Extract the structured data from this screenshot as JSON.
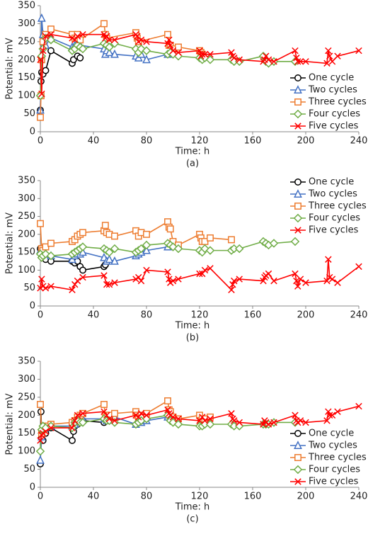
{
  "chart_data": [
    {
      "type": "line",
      "caption": "(a)",
      "xlabel": "Time: h",
      "ylabel": "Potential: mV",
      "xlim": [
        0,
        240
      ],
      "xticks": [
        0,
        40,
        80,
        120,
        160,
        200,
        240
      ],
      "ylim": [
        0,
        350
      ],
      "yticks": [
        0,
        50,
        100,
        150,
        200,
        250,
        300,
        350
      ],
      "legend": "lower right",
      "series": [
        {
          "name": "One cycle",
          "color": "#000000",
          "marker": "circle",
          "x": [
            0,
            0.5,
            1,
            2,
            4,
            8,
            24,
            25,
            28,
            30
          ],
          "values": [
            60,
            140,
            165,
            160,
            170,
            225,
            190,
            200,
            210,
            205
          ]
        },
        {
          "name": "Two cycles",
          "color": "#4472c4",
          "marker": "triangle",
          "x": [
            0,
            1,
            2,
            4,
            8,
            24,
            26,
            28,
            30,
            48,
            49,
            50,
            52,
            56,
            72,
            74,
            76,
            80,
            96,
            98
          ],
          "values": [
            60,
            315,
            270,
            240,
            260,
            235,
            240,
            245,
            240,
            230,
            215,
            225,
            220,
            215,
            210,
            205,
            215,
            200,
            215,
            220
          ]
        },
        {
          "name": "Three cycles",
          "color": "#ed7d31",
          "marker": "square",
          "x": [
            0,
            0.5,
            1,
            2,
            4,
            8,
            24,
            26,
            28,
            30,
            48,
            49,
            50,
            72,
            73,
            74,
            96,
            97,
            98,
            100,
            104,
            120,
            121,
            122
          ],
          "values": [
            40,
            100,
            200,
            250,
            270,
            285,
            270,
            260,
            270,
            255,
            300,
            270,
            260,
            275,
            260,
            250,
            270,
            240,
            240,
            230,
            235,
            225,
            220,
            215
          ]
        },
        {
          "name": "Four cycles",
          "color": "#70ad47",
          "marker": "diamond",
          "x": [
            0,
            1,
            2,
            4,
            8,
            24,
            26,
            28,
            30,
            32,
            48,
            50,
            52,
            56,
            72,
            74,
            76,
            80,
            96,
            98,
            100,
            104,
            120,
            122,
            124,
            128,
            144,
            146,
            150,
            168,
            170,
            172,
            176,
            192
          ],
          "values": [
            100,
            210,
            230,
            260,
            255,
            225,
            230,
            240,
            235,
            230,
            245,
            240,
            235,
            245,
            230,
            220,
            230,
            225,
            215,
            220,
            215,
            210,
            205,
            200,
            205,
            200,
            200,
            195,
            195,
            210,
            195,
            190,
            195,
            195
          ]
        },
        {
          "name": "Five cycles",
          "color": "#ff0000",
          "marker": "x",
          "x": [
            0,
            1,
            2,
            4,
            8,
            24,
            26,
            28,
            32,
            48,
            49,
            50,
            52,
            56,
            72,
            73,
            74,
            76,
            80,
            96,
            97,
            98,
            100,
            104,
            120,
            121,
            122,
            124,
            128,
            144,
            145,
            146,
            150,
            168,
            169,
            170,
            172,
            176,
            192,
            193,
            194,
            196,
            200,
            216,
            217,
            218,
            220,
            224,
            240
          ],
          "values": [
            200,
            105,
            225,
            265,
            270,
            260,
            255,
            265,
            270,
            270,
            260,
            265,
            255,
            255,
            270,
            265,
            250,
            255,
            250,
            245,
            255,
            240,
            225,
            220,
            225,
            210,
            215,
            215,
            215,
            220,
            210,
            205,
            200,
            195,
            200,
            210,
            200,
            195,
            225,
            205,
            195,
            195,
            195,
            190,
            225,
            210,
            195,
            210,
            225
          ]
        }
      ]
    },
    {
      "type": "line",
      "caption": "(b)",
      "xlabel": "Time: h",
      "ylabel": "Potential: mV",
      "xlim": [
        0,
        240
      ],
      "xticks": [
        0,
        40,
        80,
        120,
        160,
        200,
        240
      ],
      "ylim": [
        0,
        350
      ],
      "yticks": [
        0,
        50,
        100,
        150,
        200,
        250,
        300,
        350
      ],
      "legend": "upper right",
      "series": [
        {
          "name": "One cycle",
          "color": "#000000",
          "marker": "circle",
          "x": [
            0,
            1,
            2,
            4,
            8,
            24,
            26,
            28,
            30,
            32,
            48,
            49
          ],
          "values": [
            160,
            140,
            145,
            130,
            125,
            125,
            120,
            125,
            110,
            100,
            110,
            115
          ]
        },
        {
          "name": "Two cycles",
          "color": "#4472c4",
          "marker": "triangle",
          "x": [
            0,
            1,
            2,
            4,
            8,
            24,
            26,
            28,
            30,
            32,
            48,
            50,
            52,
            56,
            72,
            74,
            76,
            80,
            96
          ],
          "values": [
            155,
            150,
            160,
            145,
            140,
            130,
            140,
            145,
            145,
            150,
            135,
            125,
            130,
            125,
            140,
            145,
            150,
            155,
            165
          ]
        },
        {
          "name": "Three cycles",
          "color": "#ed7d31",
          "marker": "square",
          "x": [
            0,
            1,
            2,
            4,
            8,
            24,
            26,
            28,
            30,
            32,
            48,
            49,
            50,
            52,
            56,
            72,
            74,
            76,
            80,
            96,
            97,
            98,
            100,
            104,
            120,
            121,
            122,
            124,
            128,
            144
          ],
          "values": [
            230,
            160,
            155,
            165,
            175,
            180,
            185,
            195,
            200,
            205,
            210,
            225,
            205,
            200,
            195,
            210,
            195,
            205,
            200,
            235,
            220,
            215,
            180,
            170,
            200,
            190,
            180,
            180,
            190,
            185
          ]
        },
        {
          "name": "Four cycles",
          "color": "#70ad47",
          "marker": "diamond",
          "x": [
            0,
            1,
            2,
            4,
            8,
            24,
            26,
            28,
            30,
            32,
            48,
            50,
            52,
            56,
            72,
            74,
            76,
            80,
            96,
            98,
            100,
            104,
            120,
            122,
            124,
            128,
            144,
            146,
            150,
            168,
            170,
            172,
            176,
            192
          ],
          "values": [
            145,
            135,
            140,
            145,
            140,
            145,
            150,
            155,
            160,
            165,
            160,
            155,
            150,
            160,
            150,
            155,
            160,
            170,
            175,
            170,
            165,
            160,
            155,
            150,
            160,
            155,
            155,
            160,
            160,
            180,
            175,
            170,
            175,
            180
          ]
        },
        {
          "name": "Five cycles",
          "color": "#ff0000",
          "marker": "x",
          "x": [
            0,
            1,
            2,
            4,
            8,
            24,
            26,
            28,
            32,
            48,
            50,
            52,
            56,
            72,
            74,
            76,
            80,
            96,
            97,
            98,
            100,
            104,
            120,
            122,
            124,
            128,
            144,
            145,
            146,
            150,
            168,
            169,
            170,
            172,
            176,
            192,
            193,
            194,
            196,
            200,
            216,
            217,
            218,
            220,
            224,
            240
          ],
          "values": [
            50,
            75,
            55,
            50,
            55,
            45,
            60,
            70,
            80,
            85,
            60,
            60,
            65,
            75,
            80,
            70,
            100,
            95,
            75,
            65,
            70,
            75,
            90,
            90,
            100,
            105,
            45,
            60,
            70,
            75,
            70,
            80,
            85,
            90,
            70,
            90,
            70,
            55,
            75,
            65,
            70,
            130,
            80,
            75,
            65,
            110
          ]
        }
      ]
    },
    {
      "type": "line",
      "caption": "(c)",
      "xlabel": "Time: h",
      "ylabel": "Potential: mV",
      "xlim": [
        0,
        240
      ],
      "xticks": [
        0,
        40,
        80,
        120,
        160,
        200,
        240
      ],
      "ylim": [
        0,
        350
      ],
      "yticks": [
        0,
        50,
        100,
        150,
        200,
        250,
        300,
        350
      ],
      "legend": "lower right",
      "series": [
        {
          "name": "One cycle",
          "color": "#000000",
          "marker": "circle",
          "x": [
            0,
            0.5,
            1,
            2,
            4,
            8,
            24,
            25,
            26,
            28,
            30,
            32,
            48
          ],
          "values": [
            65,
            210,
            140,
            130,
            150,
            165,
            130,
            155,
            170,
            175,
            180,
            185,
            180
          ]
        },
        {
          "name": "Two cycles",
          "color": "#4472c4",
          "marker": "triangle",
          "x": [
            0,
            1,
            2,
            4,
            8,
            24,
            26,
            28,
            30,
            32,
            48,
            50,
            52,
            56,
            72,
            74,
            76,
            80,
            96
          ],
          "values": [
            75,
            140,
            160,
            165,
            170,
            170,
            175,
            185,
            190,
            190,
            190,
            185,
            195,
            195,
            175,
            185,
            180,
            185,
            195
          ]
        },
        {
          "name": "Three cycles",
          "color": "#ed7d31",
          "marker": "square",
          "x": [
            0,
            1,
            2,
            4,
            8,
            24,
            26,
            28,
            30,
            32,
            48,
            49,
            50,
            52,
            56,
            72,
            73,
            74,
            76,
            80,
            96,
            97,
            98,
            100,
            104,
            120,
            121,
            122,
            124,
            128
          ],
          "values": [
            230,
            150,
            160,
            170,
            175,
            180,
            185,
            195,
            200,
            205,
            230,
            200,
            195,
            200,
            205,
            210,
            200,
            195,
            200,
            205,
            240,
            215,
            210,
            195,
            190,
            200,
            185,
            190,
            190,
            195
          ]
        },
        {
          "name": "Four cycles",
          "color": "#70ad47",
          "marker": "diamond",
          "x": [
            0,
            1,
            2,
            4,
            8,
            24,
            26,
            28,
            30,
            32,
            48,
            50,
            52,
            56,
            72,
            74,
            76,
            80,
            96,
            98,
            100,
            104,
            120,
            122,
            124,
            128,
            144,
            146,
            150,
            168,
            170,
            172,
            176,
            192
          ],
          "values": [
            100,
            160,
            170,
            165,
            170,
            165,
            180,
            185,
            180,
            180,
            190,
            185,
            185,
            180,
            175,
            180,
            185,
            190,
            200,
            185,
            180,
            175,
            170,
            170,
            175,
            175,
            175,
            170,
            170,
            175,
            175,
            175,
            180,
            180
          ]
        },
        {
          "name": "Five cycles",
          "color": "#ff0000",
          "marker": "x",
          "x": [
            0,
            1,
            2,
            4,
            8,
            24,
            26,
            28,
            32,
            48,
            50,
            52,
            56,
            72,
            74,
            76,
            80,
            96,
            97,
            98,
            100,
            104,
            120,
            122,
            124,
            128,
            144,
            145,
            146,
            150,
            168,
            169,
            170,
            172,
            176,
            192,
            193,
            194,
            196,
            200,
            216,
            217,
            218,
            220,
            224,
            240
          ],
          "values": [
            130,
            145,
            150,
            155,
            165,
            165,
            185,
            200,
            205,
            210,
            200,
            190,
            185,
            200,
            195,
            205,
            200,
            215,
            205,
            200,
            195,
            190,
            185,
            195,
            185,
            190,
            205,
            190,
            185,
            180,
            175,
            185,
            180,
            175,
            180,
            200,
            185,
            180,
            185,
            180,
            185,
            210,
            200,
            200,
            210,
            225
          ]
        }
      ]
    }
  ]
}
